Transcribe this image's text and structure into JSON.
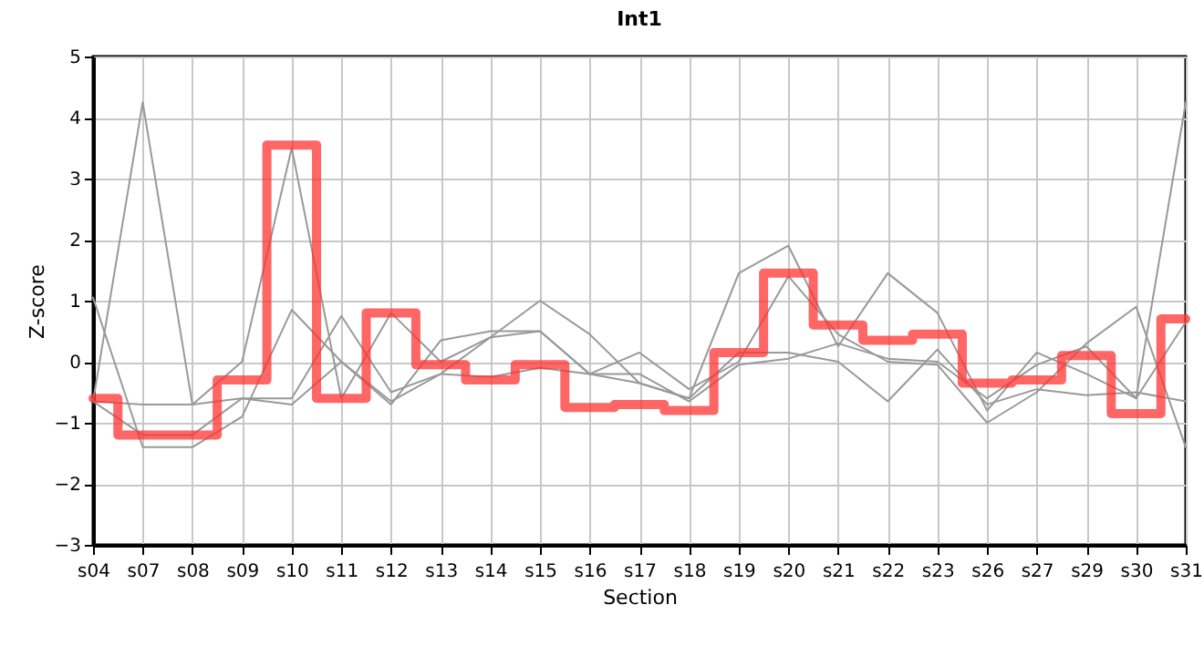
{
  "chart_data": {
    "type": "line",
    "title": "Int1",
    "xlabel": "Section",
    "ylabel": "Z-score",
    "categories": [
      "s04",
      "s07",
      "s08",
      "s09",
      "s10",
      "s11",
      "s12",
      "s13",
      "s14",
      "s15",
      "s16",
      "s17",
      "s18",
      "s19",
      "s20",
      "s21",
      "s22",
      "s23",
      "s26",
      "s27",
      "s29",
      "s30",
      "s31"
    ],
    "ylim": [
      -3,
      5
    ],
    "yticks": [
      -3,
      -2,
      -1,
      0,
      1,
      2,
      3,
      4,
      5
    ],
    "grid": true,
    "marker": "none",
    "line_style": "solid",
    "series": [
      {
        "color": "#999999",
        "values": [
          -0.65,
          4.25,
          -0.7,
          0.0,
          3.5,
          -0.6,
          0.8,
          0.0,
          0.4,
          1.0,
          0.45,
          -0.35,
          -0.6,
          1.45,
          1.9,
          0.25,
          1.45,
          0.8,
          -0.8,
          0.15,
          -0.2,
          -0.6,
          4.25
        ]
      },
      {
        "color": "#999999",
        "values": [
          1.05,
          -1.4,
          -1.4,
          -0.9,
          0.85,
          0.0,
          -0.7,
          0.35,
          0.5,
          0.5,
          -0.2,
          0.15,
          -0.45,
          0.0,
          1.4,
          0.45,
          0.0,
          -0.05,
          -1.0,
          -0.5,
          0.3,
          0.9,
          -1.4
        ]
      },
      {
        "color": "#999999",
        "values": [
          -0.65,
          -0.7,
          -0.7,
          -0.6,
          -0.6,
          0.75,
          -0.5,
          -0.2,
          -0.25,
          -0.1,
          -0.2,
          -0.2,
          -0.65,
          -0.05,
          0.05,
          0.3,
          0.05,
          0.0,
          -0.6,
          -0.05,
          0.25,
          -0.6,
          0.65
        ]
      },
      {
        "color": "#999999",
        "values": [
          -0.65,
          -1.2,
          -1.2,
          -0.6,
          -0.7,
          0.0,
          -0.65,
          -0.2,
          0.4,
          0.5,
          -0.2,
          -0.35,
          -0.6,
          0.15,
          0.15,
          0.0,
          -0.65,
          0.2,
          -0.7,
          -0.45,
          -0.55,
          -0.5,
          -0.65
        ]
      },
      {
        "type": "step",
        "color": "#ff3333",
        "values": [
          -0.6,
          -1.2,
          -1.2,
          -0.3,
          3.55,
          -0.6,
          0.8,
          -0.05,
          -0.3,
          -0.05,
          -0.75,
          -0.7,
          -0.8,
          0.15,
          1.45,
          0.6,
          0.35,
          0.45,
          -0.35,
          -0.3,
          0.1,
          -0.85,
          0.7
        ]
      }
    ]
  }
}
